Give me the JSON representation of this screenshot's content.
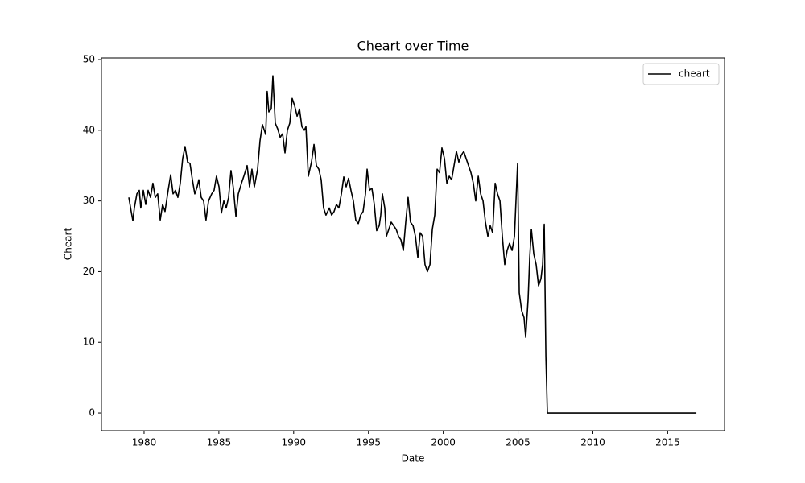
{
  "chart_data": {
    "type": "line",
    "title": "Cheart over Time",
    "x_label": "Date",
    "y_label": "Cheart",
    "x": [
      1978.98,
      1979.14,
      1979.25,
      1979.35,
      1979.52,
      1979.68,
      1979.78,
      1979.95,
      1980.11,
      1980.27,
      1980.43,
      1980.59,
      1980.75,
      1980.91,
      1981.08,
      1981.24,
      1981.4,
      1981.61,
      1981.78,
      1981.94,
      1982.1,
      1982.26,
      1982.42,
      1982.58,
      1982.74,
      1982.91,
      1983.07,
      1983.23,
      1983.39,
      1983.55,
      1983.66,
      1983.82,
      1983.98,
      1984.14,
      1984.31,
      1984.52,
      1984.68,
      1984.84,
      1985.01,
      1985.17,
      1985.33,
      1985.49,
      1985.65,
      1985.81,
      1985.97,
      1986.14,
      1986.3,
      1986.51,
      1986.67,
      1986.89,
      1987.05,
      1987.21,
      1987.37,
      1987.59,
      1987.75,
      1987.91,
      1988.13,
      1988.23,
      1988.34,
      1988.5,
      1988.61,
      1988.77,
      1988.93,
      1989.1,
      1989.26,
      1989.42,
      1989.58,
      1989.74,
      1989.9,
      1990.06,
      1990.23,
      1990.39,
      1990.55,
      1990.71,
      1990.82,
      1990.98,
      1991.19,
      1991.36,
      1991.52,
      1991.68,
      1991.84,
      1992.0,
      1992.16,
      1992.38,
      1992.54,
      1992.7,
      1992.86,
      1993.02,
      1993.19,
      1993.35,
      1993.51,
      1993.67,
      1993.83,
      1993.99,
      1994.15,
      1994.32,
      1994.48,
      1994.64,
      1994.8,
      1994.91,
      1995.07,
      1995.23,
      1995.39,
      1995.55,
      1995.72,
      1995.82,
      1995.93,
      1996.09,
      1996.2,
      1996.36,
      1996.52,
      1996.68,
      1996.85,
      1997.01,
      1997.17,
      1997.33,
      1997.49,
      1997.65,
      1997.81,
      1997.98,
      1998.14,
      1998.3,
      1998.46,
      1998.62,
      1998.78,
      1998.94,
      1999.11,
      1999.27,
      1999.43,
      1999.59,
      1999.75,
      1999.91,
      2000.08,
      2000.24,
      2000.4,
      2000.56,
      2000.72,
      2000.88,
      2001.04,
      2001.21,
      2001.37,
      2001.53,
      2001.69,
      2001.85,
      2002.01,
      2002.17,
      2002.34,
      2002.5,
      2002.66,
      2002.82,
      2002.98,
      2003.14,
      2003.3,
      2003.47,
      2003.63,
      2003.79,
      2003.95,
      2004.11,
      2004.27,
      2004.43,
      2004.6,
      2004.76,
      2004.86,
      2004.97,
      2005.08,
      2005.24,
      2005.4,
      2005.51,
      2005.67,
      2005.78,
      2005.89,
      2006.05,
      2006.21,
      2006.37,
      2006.53,
      2006.64,
      2006.75,
      2006.86,
      2006.96,
      2016.92
    ],
    "series": [
      {
        "name": "cheart",
        "color": "#000000",
        "values": [
          30.5,
          28.5,
          27.2,
          29,
          31,
          31.5,
          29,
          31.5,
          29.5,
          31.5,
          30.5,
          32.5,
          30.5,
          31,
          27.3,
          29.5,
          28.5,
          31.5,
          33.7,
          31,
          31.5,
          30.5,
          32.5,
          36,
          37.7,
          35.5,
          35.3,
          33,
          31,
          32,
          33,
          30.5,
          30,
          27.3,
          30,
          31,
          31.5,
          33.5,
          32,
          28.3,
          30,
          29,
          30.5,
          34.3,
          31.8,
          27.8,
          31,
          32.5,
          33.5,
          35,
          32,
          34.5,
          32,
          34.5,
          38.5,
          40.8,
          39.4,
          45.5,
          42.6,
          43,
          47.7,
          41,
          40.2,
          39,
          39.5,
          36.8,
          40,
          41,
          44.5,
          43.5,
          42,
          43,
          40.5,
          40,
          40.5,
          33.5,
          35.5,
          38,
          35,
          34.5,
          33,
          29,
          28,
          29,
          28,
          28.5,
          29.5,
          29,
          31,
          33.4,
          32,
          33.2,
          31.5,
          30,
          27.3,
          26.8,
          28,
          28.5,
          31,
          34.5,
          31.5,
          31.8,
          29.5,
          25.8,
          26.5,
          28,
          31,
          29,
          25,
          26,
          27,
          26.5,
          26,
          25,
          24.5,
          23,
          27,
          30.5,
          27,
          26.5,
          25,
          22,
          25.5,
          25,
          21,
          20,
          21,
          26,
          28,
          34.5,
          34,
          37.5,
          36,
          32.5,
          33.5,
          33,
          35,
          37,
          35.5,
          36.5,
          37,
          36,
          35,
          34,
          32.5,
          30,
          33.5,
          31,
          30,
          27,
          25,
          26.5,
          25.5,
          32.5,
          31,
          30,
          25,
          21,
          23,
          24,
          23,
          25,
          30,
          35.3,
          17,
          14.5,
          13.5,
          10.7,
          16,
          22,
          26,
          22.5,
          21,
          18,
          19,
          21,
          26.7,
          8,
          0,
          0
        ]
      }
    ],
    "xlim": [
      1977.15,
      2018.8
    ],
    "ylim": [
      -2.5,
      50.23
    ],
    "xticks": [
      1980,
      1985,
      1990,
      1995,
      2000,
      2005,
      2010,
      2015
    ],
    "yticks": [
      0,
      10,
      20,
      30,
      40,
      50
    ],
    "grid": false,
    "legend": "upper right"
  }
}
